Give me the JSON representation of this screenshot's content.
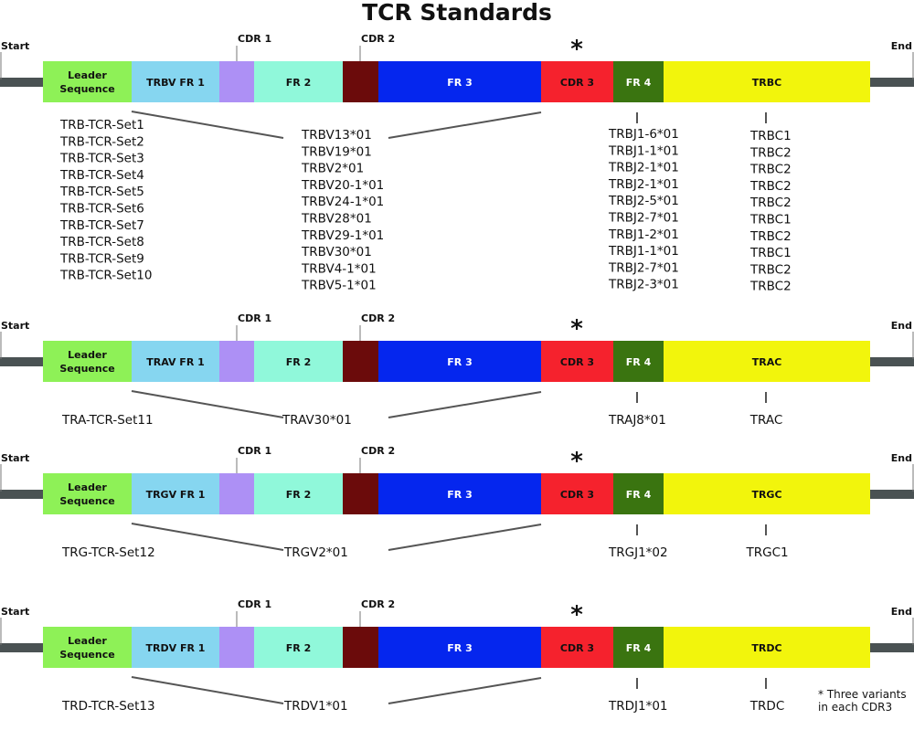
{
  "title": "TCR Standards",
  "start_label": "Start",
  "end_label": "End",
  "cdr_marker": "*",
  "footnote": [
    "* Three variants",
    "in each CDR3"
  ],
  "segments": [
    {
      "key": "leader",
      "label": "Leader Sequence",
      "color": "#8ef157",
      "text_color": "#111111"
    },
    {
      "key": "fr1",
      "label": "FR 1",
      "color": "#86d6f0",
      "text_color": "#111111"
    },
    {
      "key": "cdr1",
      "label": "",
      "header": "CDR 1",
      "color": "#ad90f5",
      "text_color": "#111111"
    },
    {
      "key": "fr2",
      "label": "FR 2",
      "color": "#90f8da",
      "text_color": "#111111"
    },
    {
      "key": "cdr2",
      "label": "",
      "header": "CDR 2",
      "color": "#6b0b0b",
      "text_color": "#ffffff"
    },
    {
      "key": "fr3",
      "label": "FR 3",
      "color": "#0526ee",
      "text_color": "#ffffff"
    },
    {
      "key": "cdr3",
      "label": "CDR 3",
      "color": "#f5222d",
      "text_color": "#111111"
    },
    {
      "key": "fr4",
      "label": "FR 4",
      "color": "#3a7410",
      "text_color": "#ffffff"
    },
    {
      "key": "c",
      "label": "",
      "color": "#f2f50c",
      "text_color": "#111111"
    }
  ],
  "backbone_color": "#4a5253",
  "rows": [
    {
      "fr1_label": "TRBV FR 1",
      "c_label": "TRBC",
      "sets": [
        "TRB-TCR-Set1",
        "TRB-TCR-Set2",
        "TRB-TCR-Set3",
        "TRB-TCR-Set4",
        "TRB-TCR-Set5",
        "TRB-TCR-Set6",
        "TRB-TCR-Set7",
        "TRB-TCR-Set8",
        "TRB-TCR-Set9",
        "TRB-TCR-Set10"
      ],
      "v_genes": [
        "TRBV13*01",
        "TRBV19*01",
        "TRBV2*01",
        "TRBV20-1*01",
        "TRBV24-1*01",
        "TRBV28*01",
        "TRBV29-1*01",
        "TRBV30*01",
        "TRBV4-1*01",
        "TRBV5-1*01"
      ],
      "j_genes": [
        "TRBJ1-6*01",
        "TRBJ1-1*01",
        "TRBJ2-1*01",
        "TRBJ2-1*01",
        "TRBJ2-5*01",
        "TRBJ2-7*01",
        "TRBJ1-2*01",
        "TRBJ1-1*01",
        "TRBJ2-7*01",
        "TRBJ2-3*01"
      ],
      "c_genes": [
        "TRBC1",
        "TRBC2",
        "TRBC2",
        "TRBC2",
        "TRBC2",
        "TRBC1",
        "TRBC2",
        "TRBC1",
        "TRBC2",
        "TRBC2"
      ]
    },
    {
      "fr1_label": "TRAV FR 1",
      "c_label": "TRAC",
      "sets": [
        "TRA-TCR-Set11"
      ],
      "v_genes": [
        "TRAV30*01"
      ],
      "j_genes": [
        "TRAJ8*01"
      ],
      "c_genes": [
        "TRAC"
      ]
    },
    {
      "fr1_label": "TRGV FR 1",
      "c_label": "TRGC",
      "sets": [
        "TRG-TCR-Set12"
      ],
      "v_genes": [
        "TRGV2*01"
      ],
      "j_genes": [
        "TRGJ1*02"
      ],
      "c_genes": [
        "TRGC1"
      ]
    },
    {
      "fr1_label": "TRDV FR 1",
      "c_label": "TRDC",
      "sets": [
        "TRD-TCR-Set13"
      ],
      "v_genes": [
        "TRDV1*01"
      ],
      "j_genes": [
        "TRDJ1*01"
      ],
      "c_genes": [
        "TRDC"
      ]
    }
  ]
}
